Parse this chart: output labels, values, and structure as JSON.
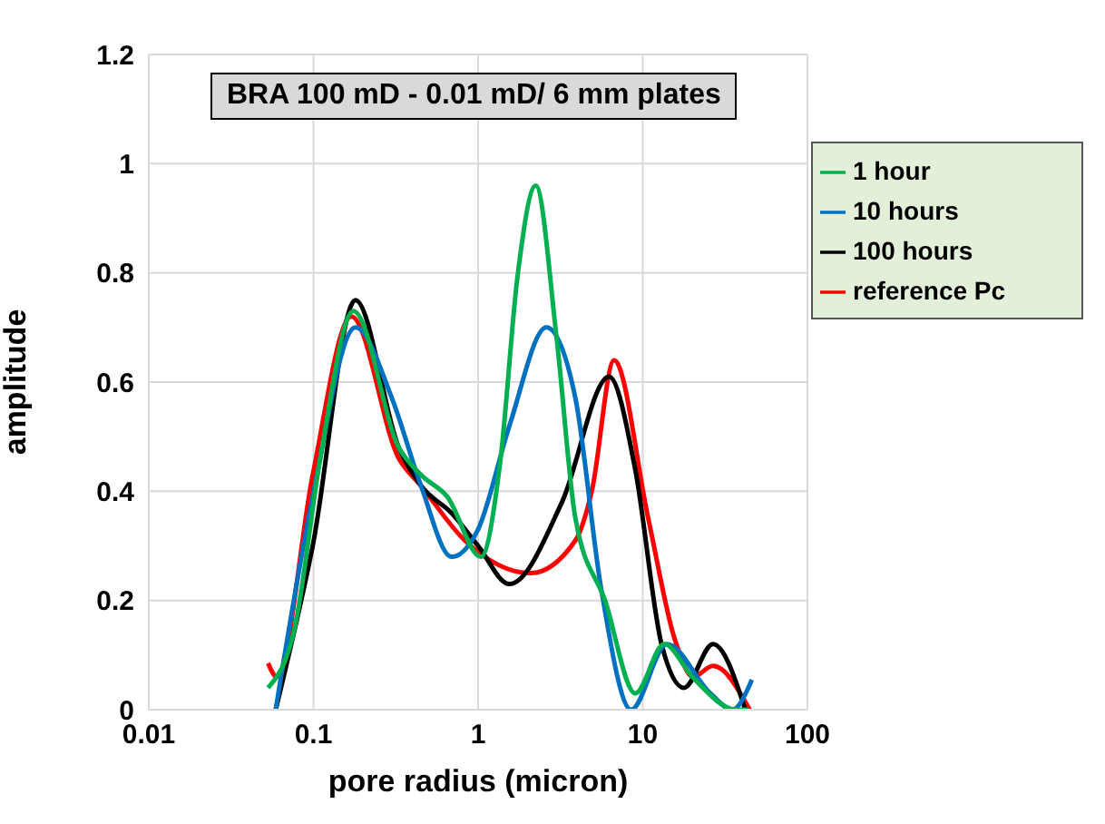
{
  "chart_data": {
    "type": "line",
    "title": "BRA 100 mD - 0.01 mD/ 6 mm plates",
    "xlabel": "pore radius (micron)",
    "ylabel": "amplitude",
    "log": "x",
    "xlim": [
      0.01,
      100
    ],
    "xticks": [
      0.01,
      0.1,
      1,
      10,
      100
    ],
    "ylim": [
      0,
      1.2
    ],
    "yticks": [
      0,
      0.2,
      0.4,
      0.6,
      0.8,
      1,
      1.2
    ],
    "grid": true,
    "legend": "top right",
    "series": [
      {
        "name": "reference Pc",
        "color": "#ff0000",
        "x": [
          0.053,
          0.06,
          0.099,
          0.17,
          0.33,
          0.45,
          0.83,
          2.08,
          3.9,
          4.9,
          6.7,
          10.8,
          15.6,
          20.2,
          26.7,
          44.6
        ],
        "values": [
          0.085,
          0.06,
          0.43,
          0.72,
          0.46,
          0.41,
          0.31,
          0.25,
          0.31,
          0.4,
          0.64,
          0.35,
          0.13,
          0.06,
          0.08,
          0
        ]
      },
      {
        "name": "100 hours",
        "color": "#000000",
        "x": [
          0.059,
          0.099,
          0.18,
          0.33,
          0.45,
          0.69,
          1,
          1.55,
          3.23,
          6.25,
          9,
          13,
          17.8,
          26.7,
          42
        ],
        "values": [
          0,
          0.3,
          0.75,
          0.48,
          0.41,
          0.36,
          0.3,
          0.23,
          0.38,
          0.61,
          0.44,
          0.12,
          0.04,
          0.12,
          0
        ]
      },
      {
        "name": "10 hours",
        "color": "#0070c0",
        "x": [
          0.059,
          0.099,
          0.18,
          0.3,
          0.45,
          0.69,
          1,
          1.55,
          2.6,
          3.9,
          5.6,
          8.5,
          14,
          25.7,
          35,
          46
        ],
        "values": [
          0,
          0.39,
          0.7,
          0.57,
          0.41,
          0.28,
          0.33,
          0.52,
          0.7,
          0.57,
          0.22,
          0,
          0.12,
          0.03,
          0,
          0.055
        ]
      },
      {
        "name": "1 hour",
        "color": "#00b050",
        "x": [
          0.053,
          0.077,
          0.11,
          0.175,
          0.33,
          0.45,
          0.65,
          1.04,
          1.37,
          1.73,
          2.24,
          3,
          3.9,
          5.9,
          9,
          13.5,
          20,
          37,
          44
        ],
        "values": [
          0.04,
          0.15,
          0.46,
          0.73,
          0.48,
          0.43,
          0.39,
          0.28,
          0.46,
          0.79,
          0.96,
          0.68,
          0.35,
          0.2,
          0.03,
          0.12,
          0.06,
          0,
          0
        ]
      }
    ]
  }
}
